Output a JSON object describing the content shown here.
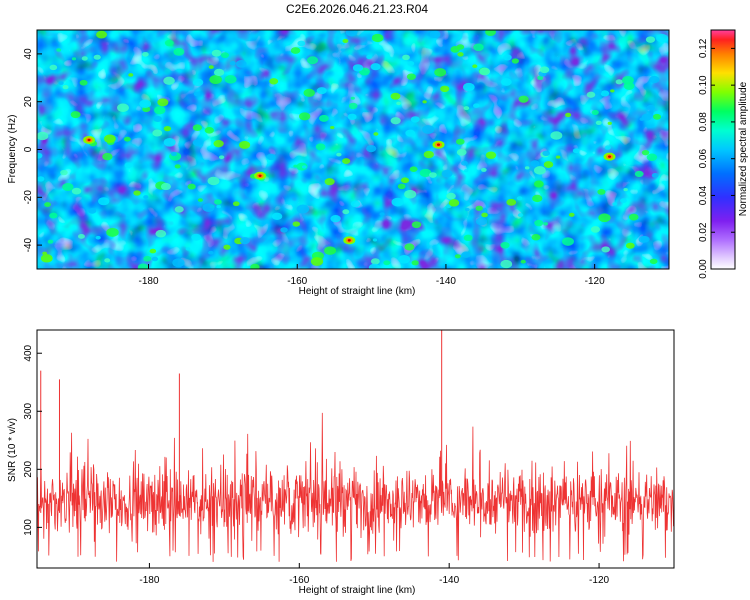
{
  "page_title": "C2E6.2026.046.21.23.R04",
  "colors": {
    "line": "#ee3333",
    "heat_low": "#ffffff",
    "heat_scale": [
      "#ffffff",
      "#cc99ff",
      "#8a2be2",
      "#3a22ee",
      "#0080ff",
      "#00e0ff",
      "#00ff80",
      "#60ff00",
      "#ffd000",
      "#ff5000",
      "#cc0000"
    ]
  },
  "chart_data": [
    {
      "type": "heatmap",
      "title": "C2E6.2026.046.21.23.R04",
      "xlabel": "Height of straight line (km)",
      "ylabel": "Frequency (Hz)",
      "xlim": [
        -195,
        -110
      ],
      "ylim": [
        -50,
        50
      ],
      "x_ticks": [
        -180,
        -160,
        -140,
        -120
      ],
      "x_tick_labels": [
        "-180",
        "-160",
        "-140",
        "-120"
      ],
      "y_ticks": [
        -40,
        -20,
        0,
        20,
        40
      ],
      "y_tick_labels": [
        "-40",
        "-20",
        "0",
        "20",
        "40"
      ],
      "colorbar": {
        "label": "Normalized spectral amplitude",
        "range": [
          0.0,
          0.13
        ],
        "ticks": [
          0.0,
          0.02,
          0.04,
          0.06,
          0.08,
          0.1,
          0.12
        ],
        "tick_labels": [
          "0.00",
          "0.02",
          "0.04",
          "0.06",
          "0.08",
          "0.10",
          "0.12"
        ]
      },
      "grid": false,
      "description_values": {
        "background_amplitude_range": [
          0.0,
          0.06
        ],
        "peaks": [
          {
            "x": -153,
            "y": -38,
            "value": 0.12
          },
          {
            "x": -165,
            "y": -11,
            "value": 0.11
          },
          {
            "x": -118,
            "y": -3,
            "value": 0.1
          },
          {
            "x": -141,
            "y": 2,
            "value": 0.09
          },
          {
            "x": -188,
            "y": 4,
            "value": 0.08
          }
        ]
      }
    },
    {
      "type": "line",
      "xlabel": "Height of straight line (km)",
      "ylabel": "SNR (10 * v/v)",
      "xlim": [
        -195,
        -110
      ],
      "ylim": [
        30,
        440
      ],
      "x_ticks": [
        -180,
        -160,
        -140,
        -120
      ],
      "x_tick_labels": [
        "-180",
        "-160",
        "-140",
        "-120"
      ],
      "y_ticks": [
        100,
        200,
        300,
        400
      ],
      "y_tick_labels": [
        "100",
        "200",
        "300",
        "400"
      ],
      "grid": false,
      "series": [
        {
          "name": "SNR",
          "baseline": 125,
          "typical_range": [
            60,
            230
          ],
          "max_value": 440,
          "max_at_x": -141,
          "notable_spikes": [
            {
              "x": -194.5,
              "y": 370
            },
            {
              "x": -176,
              "y": 365
            },
            {
              "x": -192,
              "y": 355
            },
            {
              "x": -141,
              "y": 440
            }
          ]
        }
      ]
    }
  ]
}
